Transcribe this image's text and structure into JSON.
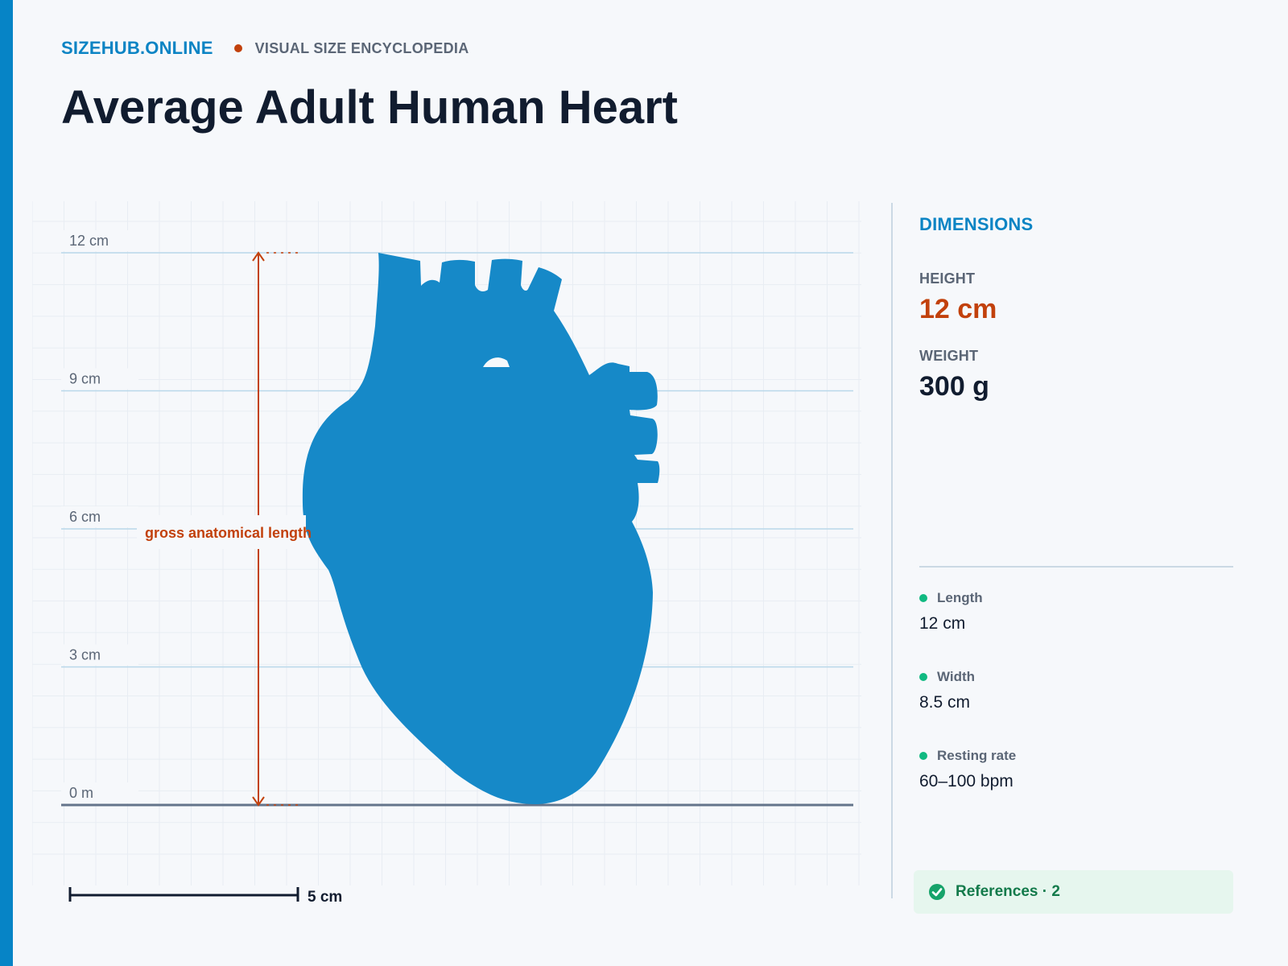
{
  "site": {
    "brand": "SIZEHUB.ONLINE",
    "tagline": "VISUAL SIZE ENCYCLOPEDIA"
  },
  "page": {
    "title": "Average Adult Human Heart"
  },
  "diagram": {
    "axis_unit": "cm",
    "axis_max": 12,
    "ticks": [
      {
        "value": 12,
        "label": "12 cm"
      },
      {
        "value": 9,
        "label": "9 cm"
      },
      {
        "value": 6,
        "label": "6 cm"
      },
      {
        "value": 3,
        "label": "3 cm"
      },
      {
        "value": 0,
        "label": "0 m"
      }
    ],
    "measure_label": "gross anatomical length",
    "measured_height": 12,
    "scale_bar": {
      "length": 5,
      "label": "5 cm"
    },
    "object_icon": "heart-silhouette-icon",
    "colors": {
      "object": "#1689c8",
      "measure": "#c2410c",
      "gridline": "#b9d8ea",
      "baseline": "#64748b"
    }
  },
  "sidebar": {
    "heading": "DIMENSIONS",
    "height_label": "HEIGHT",
    "height_value": "12 cm",
    "weight_label": "WEIGHT",
    "weight_value": "300 g",
    "facts": [
      {
        "label": "Length",
        "value": "12 cm"
      },
      {
        "label": "Width",
        "value": "8.5 cm"
      },
      {
        "label": "Resting rate",
        "value": "60–100 bpm"
      }
    ],
    "references": "References · 2"
  },
  "colors": {
    "brand": "#0b84c4",
    "accent": "#c2410c",
    "fact_dot": "#10b981",
    "references_bg": "#e6f6ee",
    "references_text": "#137a4b"
  }
}
